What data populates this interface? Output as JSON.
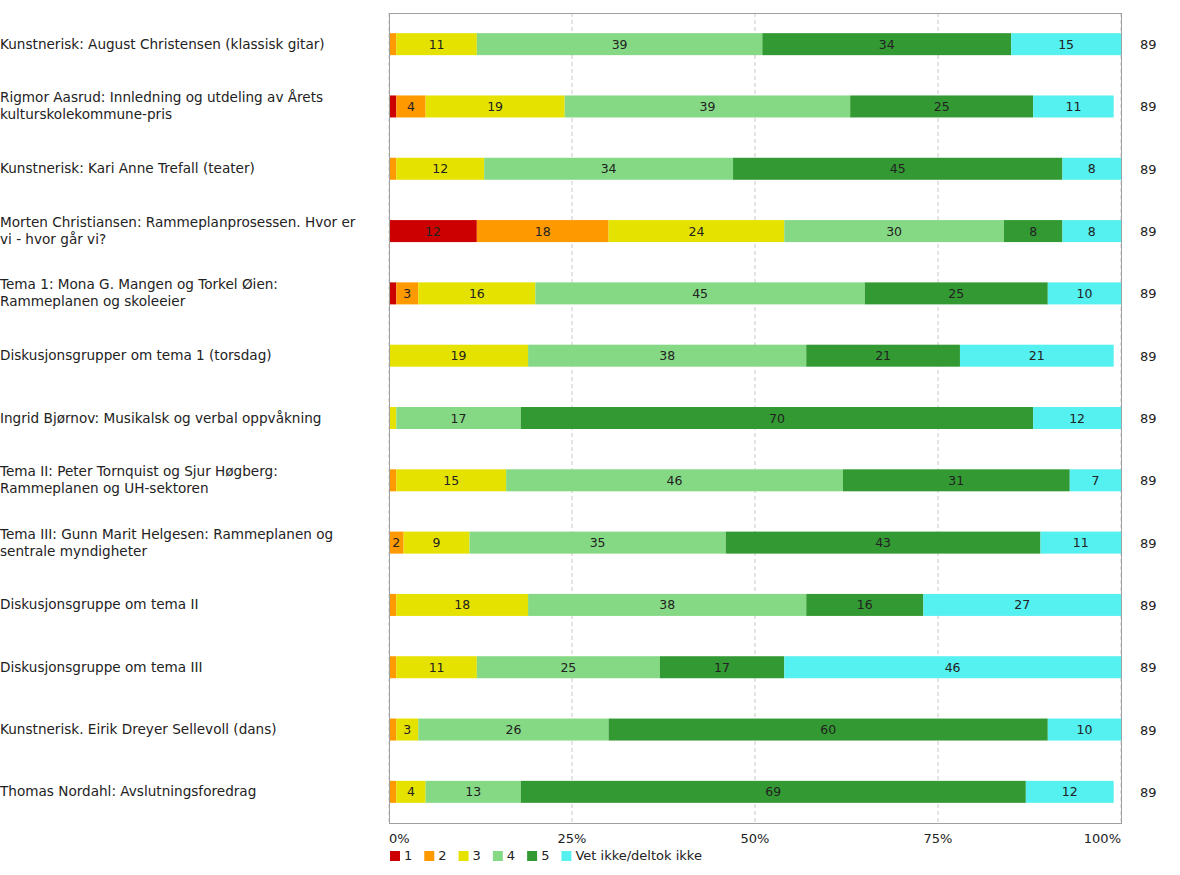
{
  "chart_data": {
    "type": "bar",
    "orientation": "horizontal",
    "stacked": true,
    "data_labels": true,
    "grid": true,
    "legend": "bottom",
    "categories": [
      "Kunstnerisk: August Christensen (klassisk gitar)",
      "Rigmor Aasrud: Innledning og utdeling av Årets kulturskolekommune-pris",
      "Kunstnerisk: Kari Anne Trefall (teater)",
      "Morten Christiansen: Rammeplanprosessen. Hvor er vi - hvor går vi?",
      "Tema 1: Mona G. Mangen og Torkel Øien: Rammeplanen og skoleeier",
      "Diskusjonsgrupper om tema 1 (torsdag)",
      "Ingrid Bjørnov: Musikalsk og verbal oppvåkning",
      "Tema II: Peter Tornquist og Sjur Høgberg: Rammeplanen og UH-sektoren",
      "Tema III: Gunn Marit Helgesen: Rammeplanen og sentrale myndigheter",
      "Diskusjonsgruppe om tema II",
      "Diskusjonsgruppe om tema III",
      "Kunstnerisk. Eirik Dreyer Sellevoll (dans)",
      "Thomas Nordahl: Avslutningsforedrag"
    ],
    "n": [
      89,
      89,
      89,
      89,
      89,
      89,
      89,
      89,
      89,
      89,
      89,
      89,
      89
    ],
    "series": [
      {
        "name": "1",
        "color": "#cc0000",
        "values": [
          0,
          1,
          0,
          12,
          1,
          0,
          0,
          0,
          0,
          0,
          0,
          0,
          0
        ]
      },
      {
        "name": "2",
        "color": "#ff9900",
        "values": [
          1,
          4,
          1,
          18,
          3,
          0,
          0,
          1,
          2,
          1,
          1,
          1,
          1
        ]
      },
      {
        "name": "3",
        "color": "#e6e200",
        "values": [
          11,
          19,
          12,
          24,
          16,
          19,
          1,
          15,
          9,
          18,
          11,
          3,
          4
        ]
      },
      {
        "name": "4",
        "color": "#85d985",
        "values": [
          39,
          39,
          34,
          30,
          45,
          38,
          17,
          46,
          35,
          38,
          25,
          26,
          13
        ]
      },
      {
        "name": "5",
        "color": "#339933",
        "values": [
          34,
          25,
          45,
          8,
          25,
          21,
          70,
          31,
          43,
          16,
          17,
          60,
          69
        ]
      },
      {
        "name": "Vet ikke/deltok ikke",
        "color": "#55f0f0",
        "values": [
          15,
          11,
          8,
          8,
          10,
          21,
          12,
          7,
          11,
          27,
          46,
          10,
          12
        ]
      }
    ],
    "xlim": [
      0,
      100
    ],
    "xticks": [
      {
        "value": 0,
        "label": "0%"
      },
      {
        "value": 25,
        "label": "25%"
      },
      {
        "value": 50,
        "label": "50%"
      },
      {
        "value": 75,
        "label": "75%"
      },
      {
        "value": 100,
        "label": "100%"
      }
    ]
  }
}
